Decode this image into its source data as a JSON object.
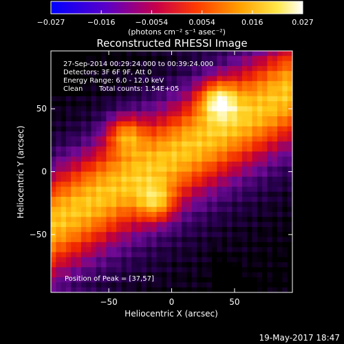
{
  "colorbar": {
    "ticks": [
      "−0.027",
      "−0.016",
      "−0.0054",
      "0.0054",
      "0.016",
      "0.027"
    ],
    "unit_label": "(photons cm⁻² s⁻¹ asec⁻²)",
    "range": [
      -0.027,
      0.027
    ]
  },
  "chart_data": {
    "type": "heatmap",
    "title": "Reconstructed RHESSI Image",
    "xlabel": "Heliocentric X (arcsec)",
    "ylabel": "Heliocentric Y (arcsec)",
    "xlim": [
      -96,
      96
    ],
    "ylim": [
      -96,
      96
    ],
    "x_ticks": [
      -50,
      0,
      50
    ],
    "y_ticks": [
      50,
      0,
      -50
    ],
    "x_tick_labels": [
      "−50",
      "0",
      "50"
    ],
    "y_tick_labels": [
      "50",
      "0",
      "−50"
    ],
    "colormap": "rhessi_heat",
    "annotations": {
      "time_range": "27-Sep-2014 00:29:24.000 to 00:39:24.000",
      "detectors": "Detectors: 3F 6F 9F, Att 0",
      "energy": "Energy Range: 6.0 - 12.0 keV",
      "clean_label": "Clean",
      "total_counts": "Total counts: 1.54E+05",
      "peak": "Position of Peak = [37,57]"
    },
    "bright_sources": [
      {
        "x": 37,
        "y": 57,
        "level": 1.0
      },
      {
        "x": -37,
        "y": 30,
        "level": 0.85
      },
      {
        "x": -12,
        "y": -25,
        "level": 0.8
      }
    ],
    "peak_position": [
      37,
      57
    ]
  },
  "footer": {
    "date": "19-May-2017 18:47"
  }
}
